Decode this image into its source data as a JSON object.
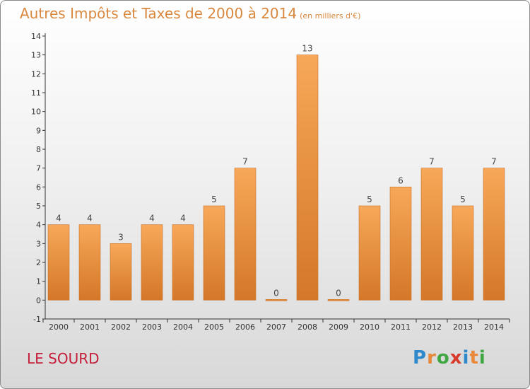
{
  "title": "Autres Impôts et Taxes de 2000 à 2014",
  "subtitle": "(en milliers d'€)",
  "commune": "LE SOURD",
  "logo": {
    "letters": [
      "P",
      "r",
      "o",
      "x",
      "i",
      "t",
      "i"
    ],
    "colors": [
      "#2e88c9",
      "#e8883a",
      "#3fa642",
      "#d63a2a",
      "#2e88c9",
      "#e8883a",
      "#3fa642"
    ]
  },
  "colors": {
    "bar_top": "#f7a858",
    "bar_bottom": "#d4772a",
    "title": "#d98840",
    "commune": "#c41e3a"
  },
  "chart_data": {
    "type": "bar",
    "title": "Autres Impôts et Taxes de 2000 à 2014",
    "subtitle": "(en milliers d'€)",
    "categories": [
      "2000",
      "2001",
      "2002",
      "2003",
      "2004",
      "2005",
      "2006",
      "2007",
      "2008",
      "2009",
      "2010",
      "2011",
      "2012",
      "2013",
      "2014"
    ],
    "values": [
      4,
      4,
      3,
      4,
      4,
      5,
      7,
      0,
      13,
      0,
      5,
      6,
      7,
      5,
      7
    ],
    "ylim": [
      -1,
      14
    ],
    "yticks": [
      -1,
      0,
      1,
      2,
      3,
      4,
      5,
      6,
      7,
      8,
      9,
      10,
      11,
      12,
      13,
      14
    ],
    "grid": false,
    "xlabel": "",
    "ylabel": ""
  }
}
